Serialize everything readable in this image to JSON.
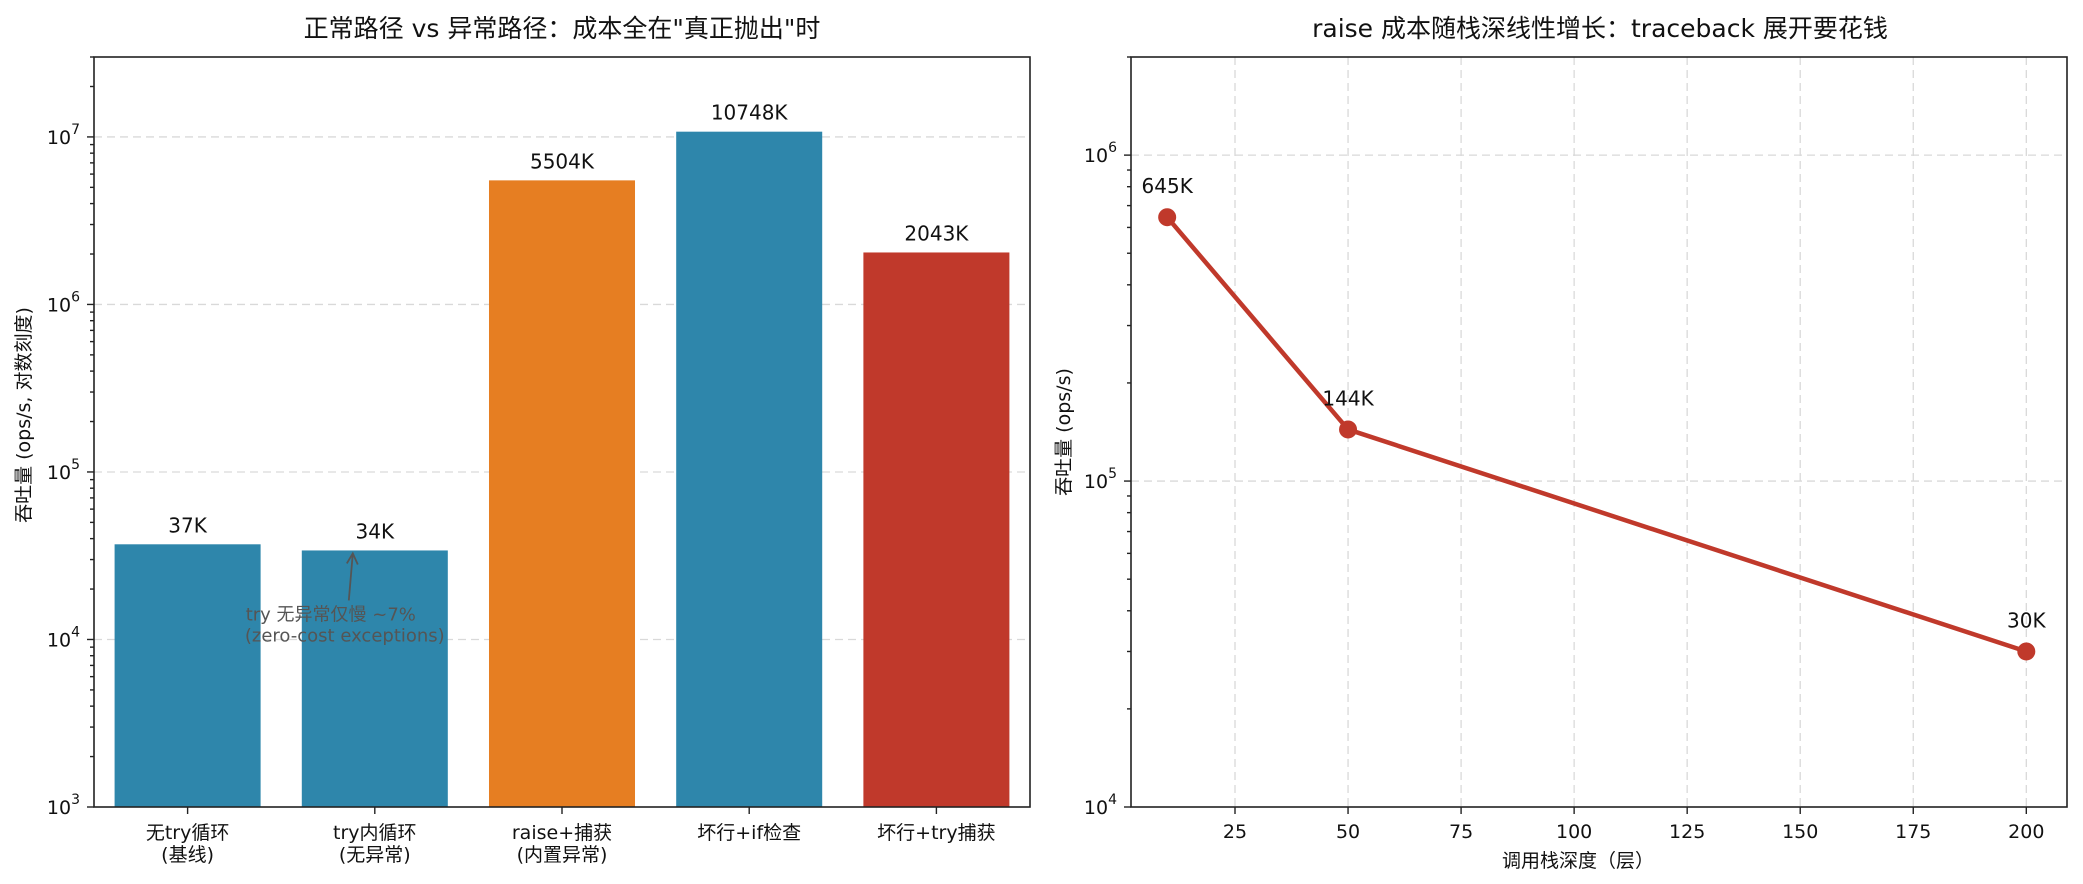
{
  "chart_data": [
    {
      "type": "bar",
      "title": "正常路径 vs 异常路径：成本全在\"真正抛出\"时",
      "ylabel": "吞吐量 (ops/s, 对数刻度)",
      "xlabel": "",
      "yscale": "log",
      "ylim": [
        1000,
        30000000
      ],
      "grid": "y",
      "categories": [
        [
          "无try循环",
          "(基线)"
        ],
        [
          "try内循环",
          "(无异常)"
        ],
        [
          "raise+捕获",
          "(内置异常)"
        ],
        [
          "坏行+if检查"
        ],
        [
          "坏行+try捕获"
        ]
      ],
      "values": [
        37000,
        34000,
        5504000,
        10748000,
        2043000
      ],
      "data_labels": [
        "37K",
        "34K",
        "5504K",
        "10748K",
        "2043K"
      ],
      "colors": [
        "#2e86ab",
        "#2e86ab",
        "#e67e22",
        "#2e86ab",
        "#c0392b"
      ],
      "annotation": {
        "lines": [
          "try 无异常仅慢 ~7%",
          "(zero-cost exceptions)"
        ],
        "target_category_index": 1,
        "target_value": 34000
      },
      "yticks": [
        {
          "value": 1000,
          "base": "10",
          "exp": "3"
        },
        {
          "value": 10000,
          "base": "10",
          "exp": "4"
        },
        {
          "value": 100000,
          "base": "10",
          "exp": "5"
        },
        {
          "value": 1000000,
          "base": "10",
          "exp": "6"
        },
        {
          "value": 10000000,
          "base": "10",
          "exp": "7"
        }
      ]
    },
    {
      "type": "line",
      "title": "raise 成本随栈深线性增长：traceback 展开要花钱",
      "ylabel": "吞吐量 (ops/s)",
      "xlabel": "调用栈深度（层）",
      "yscale": "log",
      "xlim": [
        2,
        209
      ],
      "ylim": [
        10000,
        2000000
      ],
      "grid": "both",
      "x": [
        10,
        50,
        200
      ],
      "y": [
        645000,
        144000,
        30000
      ],
      "data_labels": [
        "645K",
        "144K",
        "30K"
      ],
      "color": "#c0392b",
      "xticks": [
        25,
        50,
        75,
        100,
        125,
        150,
        175,
        200
      ],
      "yticks": [
        {
          "value": 10000,
          "base": "10",
          "exp": "4"
        },
        {
          "value": 100000,
          "base": "10",
          "exp": "5"
        },
        {
          "value": 1000000,
          "base": "10",
          "exp": "6"
        }
      ]
    }
  ]
}
